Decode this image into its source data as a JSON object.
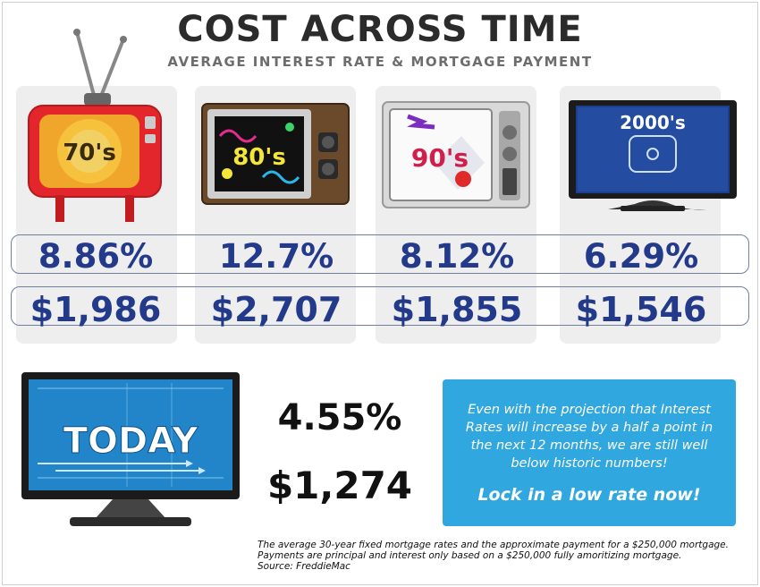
{
  "header": {
    "title": "COST ACROSS TIME",
    "subtitle": "AVERAGE INTEREST RATE & MORTGAGE PAYMENT"
  },
  "decades": [
    {
      "label": "70's",
      "rate": "8.86%",
      "payment": "$1,986",
      "tv_color": "#e3262b"
    },
    {
      "label": "80's",
      "rate": "12.7%",
      "payment": "$2,707",
      "tv_color": "#6b4a2b"
    },
    {
      "label": "90's",
      "rate": "8.12%",
      "payment": "$1,855",
      "tv_color": "#d9d9d9"
    },
    {
      "label": "2000's",
      "rate": "6.29%",
      "payment": "$1,546",
      "tv_color": "#1c3f8f"
    }
  ],
  "today": {
    "label": "TODAY",
    "rate": "4.55%",
    "payment": "$1,274"
  },
  "callout": {
    "text": "Even with the projection that Interest Rates will increase by a half a point in the next 12 months, we are still well below historic numbers!",
    "cta": "Lock in a low rate now!",
    "bg_color": "#30a7de"
  },
  "footnote": {
    "line1": "The average 30-year fixed mortgage rates and the approximate payment for a $250,000 mortgage.",
    "line2": "Payments are principal and interest only based on a $250,000 fully amoritizing mortgage.",
    "source": "Source: FreddieMac"
  },
  "colors": {
    "value_text": "#233a8b",
    "title": "#2b2b2b",
    "subtitle": "#6d6d6d"
  }
}
